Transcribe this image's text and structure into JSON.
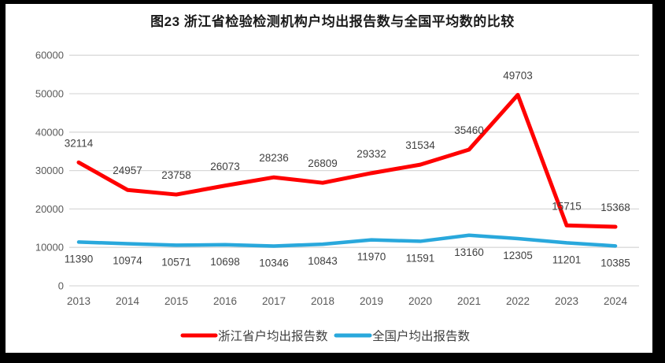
{
  "title": "图23  浙江省检验检测机构户均出报告数与全国平均数的比较",
  "frame_color": "#000000",
  "chart_data": {
    "type": "line",
    "title": "图23  浙江省检验检测机构户均出报告数与全国平均数的比较",
    "categories": [
      "2013",
      "2014",
      "2015",
      "2016",
      "2017",
      "2018",
      "2019",
      "2020",
      "2021",
      "2022",
      "2023",
      "2024"
    ],
    "series": [
      {
        "name": "浙江省户均出报告数",
        "color": "#FF0000",
        "values": [
          32114,
          24957,
          23758,
          26073,
          28236,
          26809,
          29332,
          31534,
          35460,
          49703,
          15715,
          15368
        ],
        "label_position": "above"
      },
      {
        "name": "全国户均出报告数",
        "color": "#29A8DC",
        "values": [
          11390,
          10974,
          10571,
          10698,
          10346,
          10843,
          11970,
          11591,
          13160,
          12305,
          11201,
          10385
        ],
        "label_position": "below"
      }
    ],
    "ylim": [
      0,
      60000
    ],
    "yticks": [
      0,
      10000,
      20000,
      30000,
      40000,
      50000,
      60000
    ],
    "xlabel": "",
    "ylabel": "",
    "grid": true,
    "gridline_color": "#D9D9D9",
    "axis_label_color": "#595959",
    "data_label_color": "#3F3F3F",
    "legend_position": "bottom",
    "legend_text_color": "#404040"
  }
}
